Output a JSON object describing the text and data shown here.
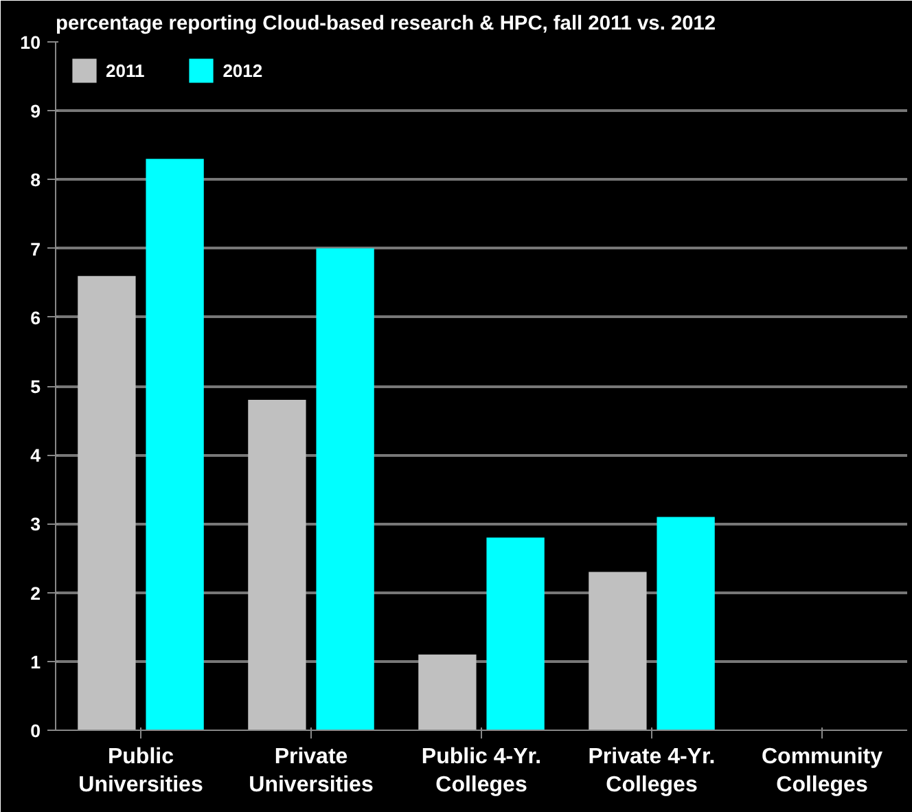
{
  "chart_data": {
    "type": "bar",
    "title": "percentage reporting Cloud-based research & HPC, fall 2011 vs. 2012",
    "categories": [
      "Public Universities",
      "Private Universities",
      "Public 4-Yr. Colleges",
      "Private 4-Yr. Colleges",
      "Community Colleges"
    ],
    "series": [
      {
        "name": "2011",
        "color": "#c0c0c0",
        "values": [
          6.6,
          4.8,
          1.1,
          2.3,
          0
        ]
      },
      {
        "name": "2012",
        "color": "#00ffff",
        "values": [
          8.3,
          7.0,
          2.8,
          3.1,
          0
        ]
      }
    ],
    "ylim": [
      0,
      10
    ],
    "yticks": [
      0,
      1,
      2,
      3,
      4,
      5,
      6,
      7,
      8,
      9,
      10
    ],
    "grid": "y",
    "legend": "top left"
  }
}
